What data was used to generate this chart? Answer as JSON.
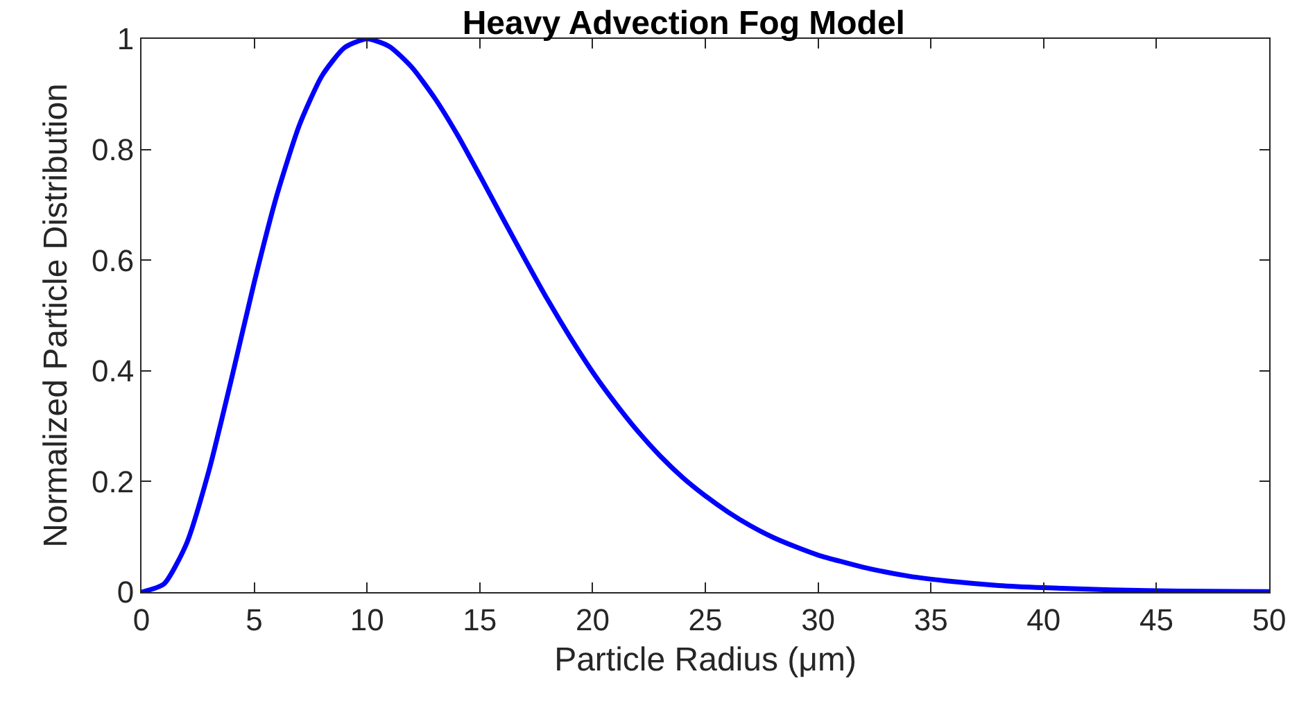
{
  "chart_data": {
    "type": "line",
    "title": "Heavy Advection Fog Model",
    "xlabel": "Particle Radius (μm)",
    "ylabel": "Normalized Particle Distribution",
    "x": [
      0,
      1,
      2,
      3,
      4,
      5,
      6,
      7,
      8,
      9,
      10,
      11,
      12,
      13,
      14,
      15,
      16,
      17,
      18,
      19,
      20,
      21,
      22,
      23,
      24,
      25,
      26,
      27,
      28,
      29,
      30,
      32,
      34,
      36,
      38,
      40,
      43,
      46,
      50
    ],
    "series": [
      {
        "color": "#0000ff",
        "values": [
          0,
          0.015,
          0.088,
          0.221,
          0.387,
          0.56,
          0.717,
          0.844,
          0.933,
          0.984,
          1,
          0.986,
          0.948,
          0.893,
          0.827,
          0.753,
          0.677,
          0.602,
          0.529,
          0.461,
          0.398,
          0.342,
          0.291,
          0.246,
          0.207,
          0.174,
          0.145,
          0.12,
          0.099,
          0.082,
          0.067,
          0.045,
          0.029,
          0.019,
          0.012,
          0.008,
          0.004,
          0.002,
          0.001
        ]
      }
    ],
    "xlim": [
      0,
      50
    ],
    "xticks": [
      0,
      5,
      10,
      15,
      20,
      25,
      30,
      35,
      40,
      45,
      50
    ],
    "ylim": [
      0,
      1
    ],
    "yticks": [
      0,
      0.2,
      0.4,
      0.6,
      0.8,
      1
    ],
    "grid": false,
    "marker": "none",
    "line_style": "solid"
  }
}
